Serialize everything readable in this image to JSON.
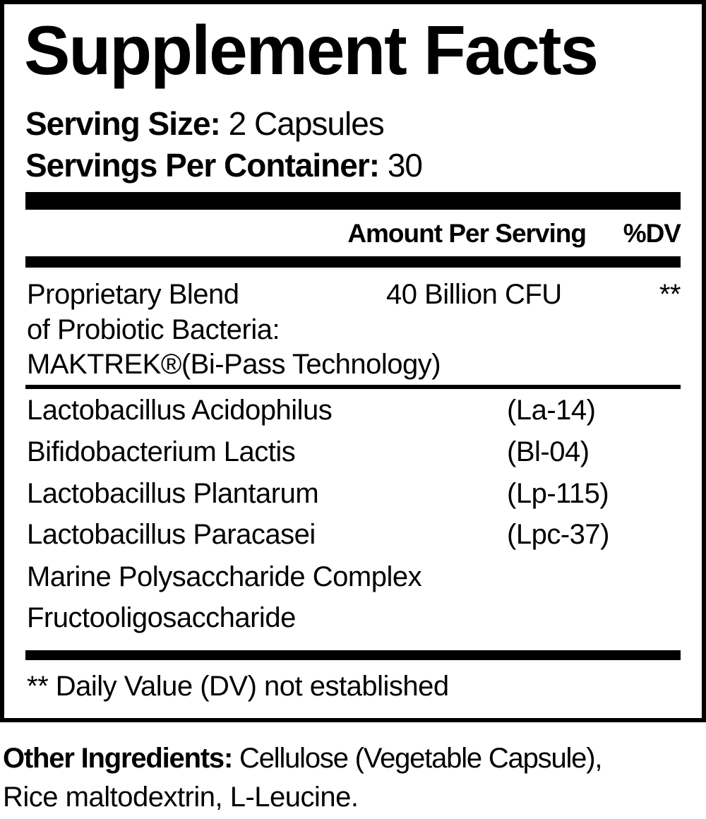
{
  "title": "Supplement Facts",
  "serving_size": {
    "label": "Serving Size:",
    "value": "2 Capsules"
  },
  "servings_per_container": {
    "label": "Servings Per Container:",
    "value": "30"
  },
  "header": {
    "amount": "Amount Per Serving",
    "dv": "%DV"
  },
  "blend": {
    "lines": [
      "Proprietary Blend",
      "of Probiotic Bacteria:",
      "MAKTREK®(Bi-Pass Technology)"
    ],
    "amount": "40 Billion CFU",
    "dv": "**"
  },
  "ingredients": [
    {
      "name": "Lactobacillus Acidophilus",
      "strain": "(La-14)"
    },
    {
      "name": "Bifidobacterium Lactis",
      "strain": "(Bl-04)"
    },
    {
      "name": "Lactobacillus Plantarum",
      "strain": "(Lp-115)"
    },
    {
      "name": "Lactobacillus Paracasei",
      "strain": "(Lpc-37)"
    },
    {
      "name": "Marine Polysaccharide Complex",
      "strain": ""
    },
    {
      "name": "Fructooligosaccharide",
      "strain": ""
    }
  ],
  "footnote": "** Daily Value (DV) not established",
  "other_ingredients": {
    "label": "Other Ingredients:",
    "line1": "Cellulose (Vegetable Capsule),",
    "line2": "Rice maltodextrin, L-Leucine."
  }
}
